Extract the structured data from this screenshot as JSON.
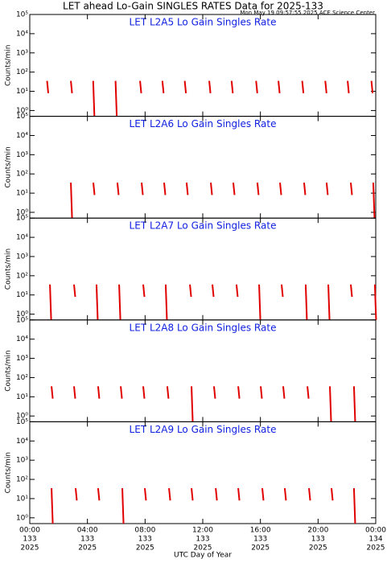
{
  "title": "LET ahead Lo-Gain SINGLES RATES Data for 2025-133",
  "subtitle": "Mon May 19 09:57:55 2025 ACE Science Center",
  "xlabel": "UTC Day of Year",
  "chart_data": [
    {
      "type": "spikes",
      "title": "LET L2A5 Lo Gain Singles Rate",
      "ylabel": "Counts/min",
      "color": "#e00000",
      "log_y": true,
      "xlim": [
        0,
        24
      ],
      "xticks": [
        0,
        4,
        8,
        12,
        16,
        20,
        24
      ],
      "ylim": [
        0.5,
        100000
      ],
      "yticks": [
        {
          "value": 1,
          "label": "10⁰"
        },
        {
          "value": 10,
          "label": "10¹"
        },
        {
          "value": 100,
          "label": "10²"
        },
        {
          "value": 1000,
          "label": "10³"
        },
        {
          "value": 10000,
          "label": "10⁴"
        },
        {
          "value": 100000,
          "label": "10⁵"
        }
      ],
      "x": [
        1.2,
        2.85,
        4.4,
        5.95,
        7.65,
        9.2,
        10.75,
        12.45,
        14.0,
        15.7,
        17.25,
        18.9,
        20.5,
        22.05,
        23.7
      ],
      "values": [
        35,
        35,
        35,
        35,
        35,
        35,
        35,
        35,
        35,
        35,
        35,
        35,
        35,
        35,
        35
      ],
      "lows": [
        8,
        8,
        0.5,
        0.5,
        8,
        8,
        8,
        8,
        8,
        8,
        8,
        8,
        8,
        8,
        8
      ]
    },
    {
      "type": "spikes",
      "title": "LET L2A6 Lo Gain Singles Rate",
      "ylabel": "Counts/min",
      "color": "#e00000",
      "log_y": true,
      "xlim": [
        0,
        24
      ],
      "xticks": [
        0,
        4,
        8,
        12,
        16,
        20,
        24
      ],
      "ylim": [
        0.5,
        100000
      ],
      "yticks": [
        {
          "value": 1,
          "label": "10⁰"
        },
        {
          "value": 10,
          "label": "10¹"
        },
        {
          "value": 100,
          "label": "10²"
        },
        {
          "value": 1000,
          "label": "10³"
        },
        {
          "value": 10000,
          "label": "10⁴"
        },
        {
          "value": 100000,
          "label": "10⁵"
        }
      ],
      "x": [
        2.85,
        4.41,
        6.08,
        7.76,
        9.32,
        10.88,
        12.56,
        14.12,
        15.79,
        17.36,
        19.03,
        20.59,
        22.27,
        23.83
      ],
      "values": [
        35,
        35,
        35,
        35,
        35,
        35,
        35,
        35,
        35,
        35,
        35,
        35,
        35,
        35
      ],
      "lows": [
        0.5,
        8,
        8,
        8,
        8,
        8,
        8,
        8,
        8,
        8,
        8,
        8,
        8,
        0.5
      ]
    },
    {
      "type": "spikes",
      "title": "LET L2A7 Lo Gain Singles Rate",
      "ylabel": "Counts/min",
      "color": "#e00000",
      "log_y": true,
      "xlim": [
        0,
        24
      ],
      "xticks": [
        0,
        4,
        8,
        12,
        16,
        20,
        24
      ],
      "ylim": [
        0.5,
        100000
      ],
      "yticks": [
        {
          "value": 1,
          "label": "10⁰"
        },
        {
          "value": 10,
          "label": "10¹"
        },
        {
          "value": 100,
          "label": "10²"
        },
        {
          "value": 1000,
          "label": "10³"
        },
        {
          "value": 10000,
          "label": "10⁴"
        },
        {
          "value": 100000,
          "label": "10⁵"
        }
      ],
      "x": [
        1.4,
        3.07,
        4.63,
        6.2,
        7.87,
        9.43,
        11.11,
        12.67,
        14.34,
        15.91,
        17.47,
        19.14,
        20.71,
        22.27,
        23.94
      ],
      "values": [
        35,
        35,
        35,
        35,
        35,
        35,
        35,
        35,
        35,
        35,
        35,
        35,
        35,
        35,
        35
      ],
      "lows": [
        0.5,
        8,
        0.5,
        0.5,
        8,
        0.5,
        8,
        8,
        8,
        0.5,
        8,
        0.5,
        0.5,
        8,
        0.5
      ]
    },
    {
      "type": "spikes",
      "title": "LET L2A8 Lo Gain Singles Rate",
      "ylabel": "Counts/min",
      "color": "#e00000",
      "log_y": true,
      "xlim": [
        0,
        24
      ],
      "xticks": [
        0,
        4,
        8,
        12,
        16,
        20,
        24
      ],
      "ylim": [
        0.5,
        100000
      ],
      "yticks": [
        {
          "value": 1,
          "label": "10⁰"
        },
        {
          "value": 10,
          "label": "10¹"
        },
        {
          "value": 100,
          "label": "10²"
        },
        {
          "value": 1000,
          "label": "10³"
        },
        {
          "value": 10000,
          "label": "10⁴"
        },
        {
          "value": 100000,
          "label": "10⁵"
        }
      ],
      "x": [
        1.51,
        3.07,
        4.74,
        6.31,
        7.87,
        9.54,
        11.22,
        12.78,
        14.46,
        16.02,
        17.58,
        19.26,
        20.82,
        22.49
      ],
      "values": [
        35,
        35,
        35,
        35,
        35,
        35,
        35,
        35,
        35,
        35,
        35,
        35,
        35,
        35
      ],
      "lows": [
        8,
        8,
        8,
        8,
        8,
        8,
        0.5,
        8,
        8,
        8,
        8,
        8,
        0.5,
        0.5
      ]
    },
    {
      "type": "spikes",
      "title": "LET L2A9 Lo Gain Singles Rate",
      "ylabel": "Counts/min",
      "color": "#e00000",
      "log_y": true,
      "xlim": [
        0,
        24
      ],
      "xticks": [
        {
          "value": 0,
          "label": "00:00"
        },
        {
          "value": 4,
          "label": "04:00"
        },
        {
          "value": 8,
          "label": "08:00"
        },
        {
          "value": 12,
          "label": "12:00"
        },
        {
          "value": 16,
          "label": "16:00"
        },
        {
          "value": 20,
          "label": "20:00"
        },
        {
          "value": 24,
          "label": "00:00"
        }
      ],
      "xtick_days": [
        "133",
        "133",
        "133",
        "133",
        "133",
        "133",
        "134"
      ],
      "xtick_years": [
        "2025",
        "2025",
        "2025",
        "2025",
        "2025",
        "2025",
        "2025"
      ],
      "ylim": [
        0.5,
        100000
      ],
      "yticks": [
        {
          "value": 1,
          "label": "10⁰"
        },
        {
          "value": 10,
          "label": "10¹"
        },
        {
          "value": 100,
          "label": "10²"
        },
        {
          "value": 1000,
          "label": "10³"
        },
        {
          "value": 10000,
          "label": "10⁴"
        },
        {
          "value": 100000,
          "label": "10⁵"
        }
      ],
      "x": [
        1.51,
        3.18,
        4.74,
        6.42,
        7.98,
        9.66,
        11.22,
        12.9,
        14.46,
        16.13,
        17.69,
        19.37,
        20.93,
        22.49
      ],
      "values": [
        35,
        35,
        35,
        35,
        35,
        35,
        35,
        35,
        35,
        35,
        35,
        35,
        35,
        35
      ],
      "lows": [
        0.5,
        8,
        8,
        0.5,
        8,
        8,
        8,
        8,
        8,
        8,
        8,
        8,
        8,
        0.5
      ]
    }
  ]
}
